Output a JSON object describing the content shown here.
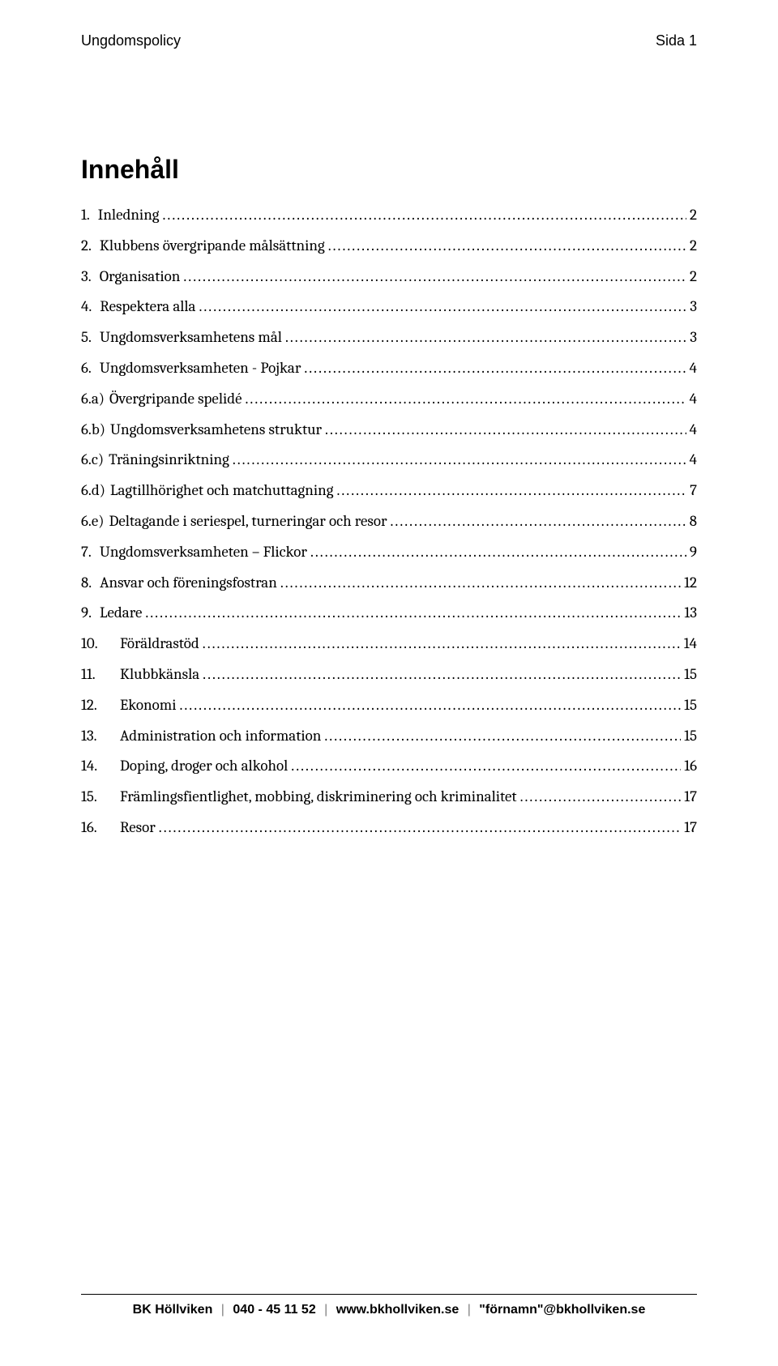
{
  "header": {
    "left": "Ungdomspolicy",
    "right": "Sida 1"
  },
  "title": "Innehåll",
  "toc": [
    {
      "num": "1.",
      "label": "Inledning",
      "page": "2",
      "wide": false
    },
    {
      "num": "2.",
      "label": "Klubbens övergripande målsättning",
      "page": "2",
      "wide": false
    },
    {
      "num": "3.",
      "label": "Organisation",
      "page": "2",
      "wide": false
    },
    {
      "num": "4.",
      "label": "Respektera alla",
      "page": "3",
      "wide": false
    },
    {
      "num": "5.",
      "label": "Ungdomsverksamhetens mål",
      "page": "3",
      "wide": false
    },
    {
      "num": "6.",
      "label": "Ungdomsverksamheten - Pojkar",
      "page": "4",
      "wide": false
    },
    {
      "num": "6.a)",
      "label": "Övergripande spelidé",
      "page": "4",
      "wide": false,
      "sub": true
    },
    {
      "num": "6.b)",
      "label": "Ungdomsverksamhetens struktur",
      "page": "4",
      "wide": false,
      "sub": true
    },
    {
      "num": "6.c)",
      "label": "Träningsinriktning",
      "page": "4",
      "wide": false,
      "sub": true
    },
    {
      "num": "6.d)",
      "label": "Lagtillhörighet och matchuttagning",
      "page": "7",
      "wide": false,
      "sub": true
    },
    {
      "num": "6.e)",
      "label": "Deltagande i seriespel, turneringar och resor",
      "page": "8",
      "wide": false,
      "sub": true
    },
    {
      "num": "7.",
      "label": "Ungdomsverksamheten – Flickor",
      "page": "9",
      "wide": false
    },
    {
      "num": "8.",
      "label": "Ansvar och föreningsfostran",
      "page": "12",
      "wide": false
    },
    {
      "num": "9.",
      "label": "Ledare",
      "page": "13",
      "wide": false
    },
    {
      "num": "10.",
      "label": "Föräldrastöd",
      "page": "14",
      "wide": true
    },
    {
      "num": "11.",
      "label": "Klubbkänsla",
      "page": "15",
      "wide": true
    },
    {
      "num": "12.",
      "label": "Ekonomi",
      "page": "15",
      "wide": true
    },
    {
      "num": "13.",
      "label": "Administration och information",
      "page": "15",
      "wide": true
    },
    {
      "num": "14.",
      "label": "Doping, droger och alkohol",
      "page": "16",
      "wide": true
    },
    {
      "num": "15.",
      "label": "Främlingsfientlighet, mobbing, diskriminering och kriminalitet",
      "page": "17",
      "wide": true
    },
    {
      "num": "16.",
      "label": "Resor",
      "page": "17",
      "wide": true
    }
  ],
  "footer": {
    "org": "BK Höllviken",
    "phone": "040 - 45 11 52",
    "url": "www.bkhollviken.se",
    "email": "\"förnamn\"@bkhollviken.se",
    "separator": "|"
  },
  "colors": {
    "text": "#000000",
    "separator": "#808080",
    "background": "#ffffff"
  },
  "fonts": {
    "header_family": "Arial",
    "header_size_pt": 13,
    "title_family": "Arial",
    "title_size_pt": 24,
    "title_weight": "bold",
    "body_family": "Cambria",
    "body_size_pt": 14,
    "footer_family": "Arial",
    "footer_size_pt": 12
  }
}
